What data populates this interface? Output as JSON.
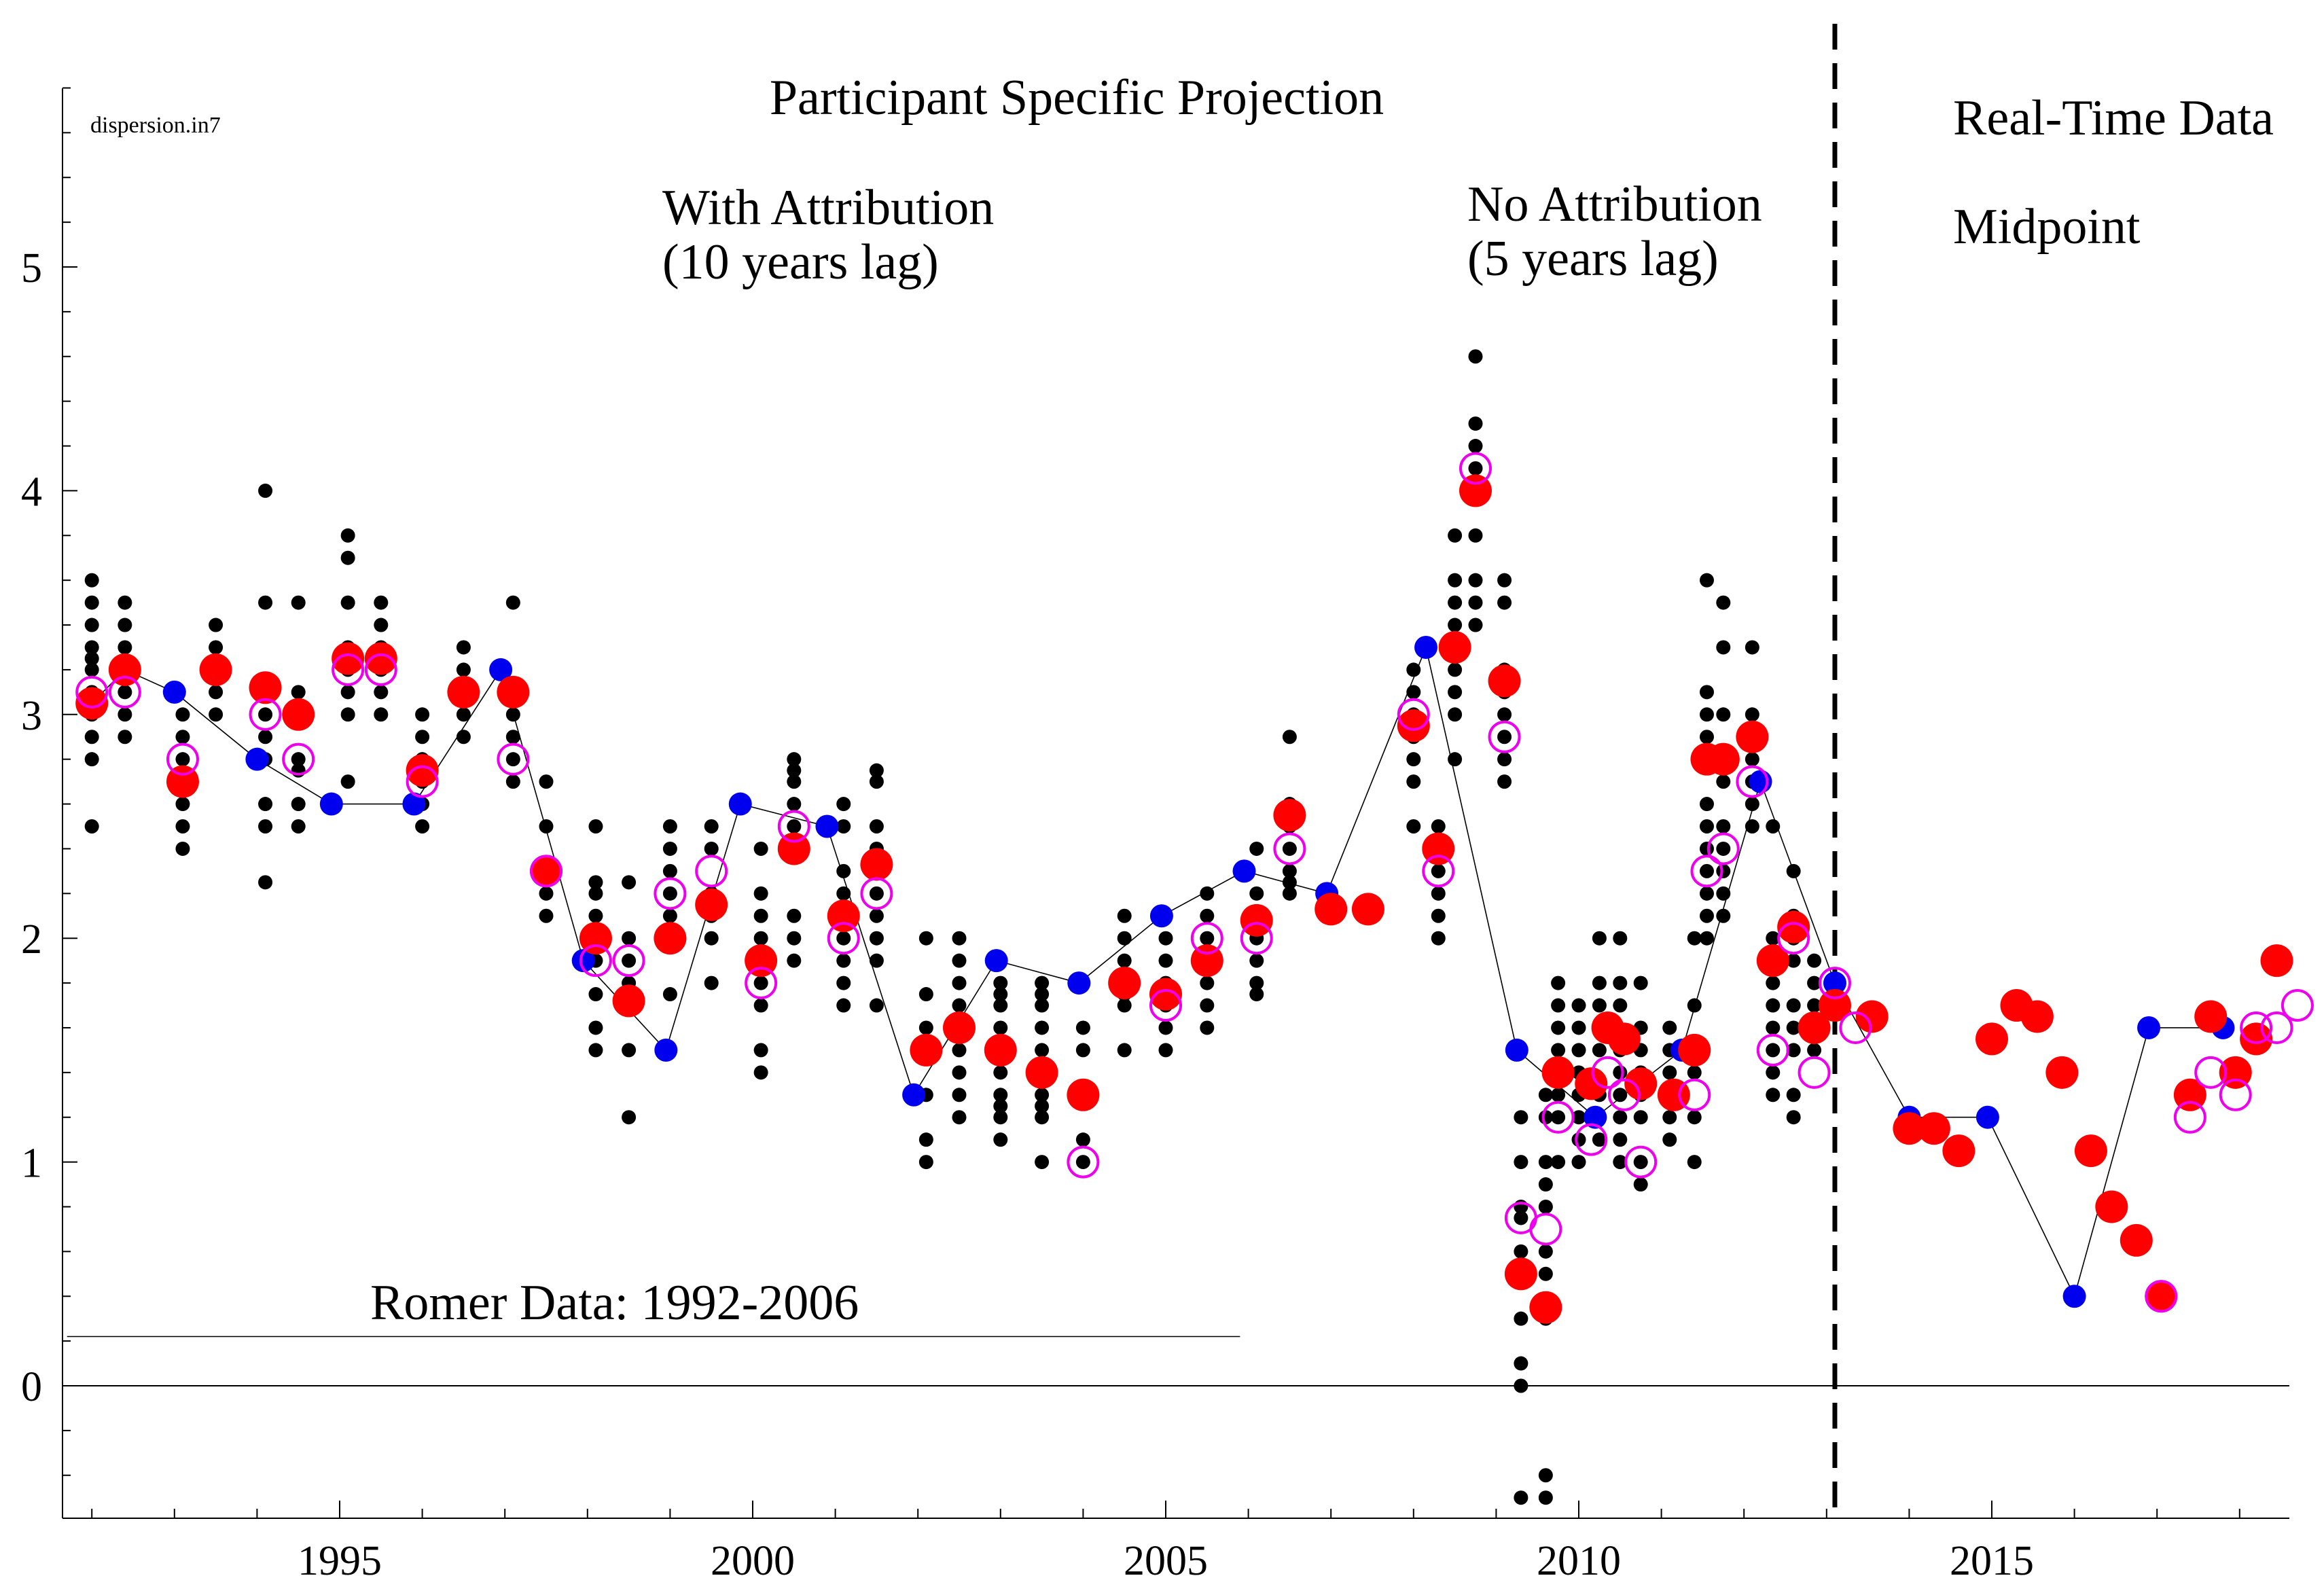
{
  "chart_data": {
    "type": "scatter",
    "title": "Participant Specific Projection",
    "file_label": "dispersion.in7",
    "annotations": {
      "with_attribution": [
        "With Attribution",
        "(10 years lag)"
      ],
      "no_attribution": [
        "No Attribution",
        "(5 years lag)"
      ],
      "real_time": "Real-Time Data",
      "midpoint": "Midpoint",
      "romer": "Romer Data: 1992-2006"
    },
    "xlim": [
      1991.7,
      2018.7
    ],
    "ylim": [
      -0.58,
      5.8
    ],
    "x_ticks": [
      1995,
      2000,
      2005,
      2010,
      2015
    ],
    "y_ticks": [
      0,
      1,
      2,
      3,
      4,
      5
    ],
    "divider_x": 2013.1,
    "romer_line": {
      "x_start": 1991.7,
      "x_end": 2005.9,
      "y": 0.22
    },
    "colors": {
      "participants": "#000000",
      "blue": "#0000ee",
      "red": "#ff0000",
      "open": "#ee00ee",
      "line": "#000000"
    },
    "participants": [
      {
        "x": 1992.0,
        "y": [
          2.5,
          2.8,
          2.9,
          3.0,
          3.1,
          3.2,
          3.25,
          3.3,
          3.4,
          3.5,
          3.6
        ]
      },
      {
        "x": 1992.4,
        "y": [
          2.9,
          3.0,
          3.1,
          3.2,
          3.3,
          3.4,
          3.5
        ]
      },
      {
        "x": 1993.1,
        "y": [
          2.4,
          2.5,
          2.6,
          2.7,
          2.8,
          2.9,
          3.0
        ]
      },
      {
        "x": 1993.5,
        "y": [
          3.0,
          3.1,
          3.2,
          3.3,
          3.4
        ]
      },
      {
        "x": 1994.1,
        "y": [
          2.25,
          2.5,
          2.6,
          2.8,
          2.9,
          3.0,
          3.1,
          3.5,
          4.0
        ]
      },
      {
        "x": 1994.5,
        "y": [
          2.5,
          2.6,
          2.75,
          2.8,
          3.0,
          3.1,
          3.5
        ]
      },
      {
        "x": 1995.1,
        "y": [
          2.7,
          3.0,
          3.1,
          3.2,
          3.3,
          3.5,
          3.7,
          3.8
        ]
      },
      {
        "x": 1995.5,
        "y": [
          3.0,
          3.1,
          3.2,
          3.3,
          3.4,
          3.5
        ]
      },
      {
        "x": 1996.0,
        "y": [
          2.5,
          2.6,
          2.7,
          2.8,
          2.9,
          3.0
        ]
      },
      {
        "x": 1996.5,
        "y": [
          2.9,
          3.0,
          3.1,
          3.2,
          3.3
        ]
      },
      {
        "x": 1997.1,
        "y": [
          2.7,
          2.8,
          2.9,
          3.0,
          3.5
        ]
      },
      {
        "x": 1997.5,
        "y": [
          2.1,
          2.2,
          2.3,
          2.5,
          2.7
        ]
      },
      {
        "x": 1998.1,
        "y": [
          1.5,
          1.6,
          1.75,
          1.9,
          2.0,
          2.1,
          2.2,
          2.25,
          2.5
        ]
      },
      {
        "x": 1998.5,
        "y": [
          1.2,
          1.5,
          1.7,
          1.8,
          1.9,
          2.0,
          2.25
        ]
      },
      {
        "x": 1999.0,
        "y": [
          1.5,
          1.75,
          2.0,
          2.1,
          2.2,
          2.3,
          2.4,
          2.5
        ]
      },
      {
        "x": 1999.5,
        "y": [
          1.8,
          2.0,
          2.1,
          2.2,
          2.4,
          2.5
        ]
      },
      {
        "x": 2000.1,
        "y": [
          1.4,
          1.5,
          1.7,
          1.8,
          1.9,
          2.0,
          2.1,
          2.2,
          2.4
        ]
      },
      {
        "x": 2000.5,
        "y": [
          1.9,
          2.0,
          2.1,
          2.4,
          2.5,
          2.6,
          2.7,
          2.75,
          2.8
        ]
      },
      {
        "x": 2001.1,
        "y": [
          1.7,
          1.8,
          1.9,
          2.0,
          2.1,
          2.2,
          2.3,
          2.5,
          2.6
        ]
      },
      {
        "x": 2001.5,
        "y": [
          1.7,
          1.9,
          2.0,
          2.1,
          2.2,
          2.3,
          2.4,
          2.5,
          2.7,
          2.75
        ]
      },
      {
        "x": 2002.1,
        "y": [
          1.0,
          1.1,
          1.3,
          1.5,
          1.6,
          1.75,
          2.0
        ]
      },
      {
        "x": 2002.5,
        "y": [
          1.2,
          1.3,
          1.4,
          1.5,
          1.6,
          1.7,
          1.8,
          1.9,
          2.0
        ]
      },
      {
        "x": 2003.0,
        "y": [
          1.1,
          1.2,
          1.25,
          1.3,
          1.4,
          1.5,
          1.6,
          1.7,
          1.75,
          1.8
        ]
      },
      {
        "x": 2003.5,
        "y": [
          1.0,
          1.2,
          1.25,
          1.3,
          1.4,
          1.5,
          1.6,
          1.7,
          1.75,
          1.8
        ]
      },
      {
        "x": 2004.0,
        "y": [
          1.0,
          1.1,
          1.3,
          1.5,
          1.6
        ]
      },
      {
        "x": 2004.5,
        "y": [
          1.5,
          1.7,
          1.75,
          1.8,
          1.9,
          2.0,
          2.1
        ]
      },
      {
        "x": 2005.0,
        "y": [
          1.5,
          1.6,
          1.7,
          1.75,
          1.8,
          1.9,
          2.0
        ]
      },
      {
        "x": 2005.5,
        "y": [
          1.6,
          1.7,
          1.8,
          1.9,
          2.0,
          2.1,
          2.2
        ]
      },
      {
        "x": 2006.1,
        "y": [
          1.75,
          1.8,
          1.9,
          2.0,
          2.1,
          2.2,
          2.4
        ]
      },
      {
        "x": 2006.5,
        "y": [
          2.2,
          2.25,
          2.3,
          2.4,
          2.5,
          2.6,
          2.9
        ]
      },
      {
        "x": 2008.0,
        "y": [
          2.5,
          2.7,
          2.8,
          2.9,
          3.0,
          3.1,
          3.2
        ]
      },
      {
        "x": 2008.3,
        "y": [
          2.0,
          2.1,
          2.2,
          2.3,
          2.4,
          2.5
        ]
      },
      {
        "x": 2008.5,
        "y": [
          2.8,
          3.0,
          3.1,
          3.2,
          3.3,
          3.4,
          3.5,
          3.6,
          3.8
        ]
      },
      {
        "x": 2008.75,
        "y": [
          3.4,
          3.5,
          3.6,
          3.8,
          4.0,
          4.1,
          4.2,
          4.3,
          4.6
        ]
      },
      {
        "x": 2009.1,
        "y": [
          2.7,
          2.8,
          2.9,
          3.0,
          3.1,
          3.2,
          3.5,
          3.6
        ]
      },
      {
        "x": 2009.3,
        "y": [
          -0.5,
          0.0,
          0.1,
          0.3,
          0.5,
          0.6,
          0.75,
          0.8,
          1.0,
          1.2
        ]
      },
      {
        "x": 2009.6,
        "y": [
          -0.5,
          -0.4,
          0.3,
          0.5,
          0.6,
          0.8,
          0.9,
          1.0,
          1.2,
          1.3
        ]
      },
      {
        "x": 2009.75,
        "y": [
          1.0,
          1.2,
          1.3,
          1.4,
          1.5,
          1.6,
          1.7,
          1.8
        ]
      },
      {
        "x": 2010.0,
        "y": [
          1.0,
          1.1,
          1.2,
          1.3,
          1.4,
          1.5,
          1.6,
          1.7
        ]
      },
      {
        "x": 2010.25,
        "y": [
          1.1,
          1.2,
          1.3,
          1.5,
          1.6,
          1.7,
          1.8,
          2.0
        ]
      },
      {
        "x": 2010.5,
        "y": [
          1.0,
          1.1,
          1.2,
          1.3,
          1.4,
          1.5,
          1.7,
          1.8,
          2.0
        ]
      },
      {
        "x": 2010.75,
        "y": [
          0.9,
          1.0,
          1.2,
          1.3,
          1.4,
          1.5,
          1.6,
          1.8
        ]
      },
      {
        "x": 2011.1,
        "y": [
          1.1,
          1.2,
          1.3,
          1.4,
          1.5,
          1.6
        ]
      },
      {
        "x": 2011.4,
        "y": [
          1.0,
          1.2,
          1.4,
          1.5,
          1.7,
          2.0
        ]
      },
      {
        "x": 2011.55,
        "y": [
          2.0,
          2.1,
          2.2,
          2.3,
          2.4,
          2.5,
          2.6,
          2.8,
          2.9,
          3.0,
          3.1,
          3.6
        ]
      },
      {
        "x": 2011.75,
        "y": [
          2.1,
          2.2,
          2.3,
          2.4,
          2.5,
          2.7,
          2.8,
          3.0,
          3.3,
          3.5
        ]
      },
      {
        "x": 2012.1,
        "y": [
          2.5,
          2.6,
          2.7,
          2.8,
          2.9,
          3.0,
          3.3
        ]
      },
      {
        "x": 2012.35,
        "y": [
          1.3,
          1.4,
          1.5,
          1.6,
          1.7,
          1.8,
          1.9,
          2.0,
          2.5
        ]
      },
      {
        "x": 2012.6,
        "y": [
          1.2,
          1.3,
          1.5,
          1.6,
          1.7,
          1.9,
          2.0,
          2.1,
          2.3
        ]
      },
      {
        "x": 2012.85,
        "y": [
          1.5,
          1.6,
          1.7,
          1.8,
          1.9
        ]
      }
    ],
    "blue_series": {
      "name": "Blue",
      "points": [
        {
          "x": 1992.0,
          "y": 3.05
        },
        {
          "x": 1992.4,
          "y": 3.2
        },
        {
          "x": 1993.0,
          "y": 3.1
        },
        {
          "x": 1994.0,
          "y": 2.8
        },
        {
          "x": 1994.9,
          "y": 2.6
        },
        {
          "x": 1995.9,
          "y": 2.6
        },
        {
          "x": 1996.95,
          "y": 3.2
        },
        {
          "x": 1997.95,
          "y": 1.9
        },
        {
          "x": 1998.95,
          "y": 1.5
        },
        {
          "x": 1999.85,
          "y": 2.6
        },
        {
          "x": 2000.9,
          "y": 2.5
        },
        {
          "x": 2001.95,
          "y": 1.3
        },
        {
          "x": 2002.95,
          "y": 1.9
        },
        {
          "x": 2003.95,
          "y": 1.8
        },
        {
          "x": 2004.95,
          "y": 2.1
        },
        {
          "x": 2005.95,
          "y": 2.3
        },
        {
          "x": 2006.95,
          "y": 2.2
        },
        {
          "x": 2008.15,
          "y": 3.3
        },
        {
          "x": 2009.25,
          "y": 1.5
        },
        {
          "x": 2010.2,
          "y": 1.2
        },
        {
          "x": 2011.25,
          "y": 1.5
        },
        {
          "x": 2012.2,
          "y": 2.7
        },
        {
          "x": 2013.1,
          "y": 1.8
        },
        {
          "x": 2014.0,
          "y": 1.2
        },
        {
          "x": 2014.95,
          "y": 1.2
        },
        {
          "x": 2016.0,
          "y": 0.4
        },
        {
          "x": 2016.9,
          "y": 1.6
        },
        {
          "x": 2017.8,
          "y": 1.6
        }
      ]
    },
    "red_series": {
      "name": "Red",
      "points": [
        {
          "x": 1992.0,
          "y": 3.05
        },
        {
          "x": 1992.4,
          "y": 3.2
        },
        {
          "x": 1993.1,
          "y": 2.7
        },
        {
          "x": 1993.5,
          "y": 3.2
        },
        {
          "x": 1994.1,
          "y": 3.12
        },
        {
          "x": 1994.5,
          "y": 3.0
        },
        {
          "x": 1995.1,
          "y": 3.25
        },
        {
          "x": 1995.5,
          "y": 3.25
        },
        {
          "x": 1996.0,
          "y": 2.75
        },
        {
          "x": 1996.5,
          "y": 3.1
        },
        {
          "x": 1997.1,
          "y": 3.1
        },
        {
          "x": 1997.5,
          "y": 2.3
        },
        {
          "x": 1998.1,
          "y": 2.0
        },
        {
          "x": 1998.5,
          "y": 1.72
        },
        {
          "x": 1999.0,
          "y": 2.0
        },
        {
          "x": 1999.5,
          "y": 2.15
        },
        {
          "x": 2000.1,
          "y": 1.9
        },
        {
          "x": 2000.5,
          "y": 2.4
        },
        {
          "x": 2001.1,
          "y": 2.1
        },
        {
          "x": 2001.5,
          "y": 2.33
        },
        {
          "x": 2002.1,
          "y": 1.5
        },
        {
          "x": 2002.5,
          "y": 1.6
        },
        {
          "x": 2003.0,
          "y": 1.5
        },
        {
          "x": 2003.5,
          "y": 1.4
        },
        {
          "x": 2004.0,
          "y": 1.3
        },
        {
          "x": 2004.5,
          "y": 1.8
        },
        {
          "x": 2005.0,
          "y": 1.75
        },
        {
          "x": 2005.5,
          "y": 1.9
        },
        {
          "x": 2006.1,
          "y": 2.08
        },
        {
          "x": 2006.5,
          "y": 2.55
        },
        {
          "x": 2007.0,
          "y": 2.13
        },
        {
          "x": 2007.45,
          "y": 2.13
        },
        {
          "x": 2008.0,
          "y": 2.95
        },
        {
          "x": 2008.3,
          "y": 2.4
        },
        {
          "x": 2008.5,
          "y": 3.3
        },
        {
          "x": 2008.75,
          "y": 4.0
        },
        {
          "x": 2009.1,
          "y": 3.15
        },
        {
          "x": 2009.3,
          "y": 0.5
        },
        {
          "x": 2009.6,
          "y": 0.35
        },
        {
          "x": 2009.75,
          "y": 1.4
        },
        {
          "x": 2010.15,
          "y": 1.35
        },
        {
          "x": 2010.35,
          "y": 1.6
        },
        {
          "x": 2010.55,
          "y": 1.55
        },
        {
          "x": 2010.75,
          "y": 1.35
        },
        {
          "x": 2011.15,
          "y": 1.3
        },
        {
          "x": 2011.4,
          "y": 1.5
        },
        {
          "x": 2011.55,
          "y": 2.8
        },
        {
          "x": 2011.75,
          "y": 2.8
        },
        {
          "x": 2012.1,
          "y": 2.9
        },
        {
          "x": 2012.35,
          "y": 1.9
        },
        {
          "x": 2012.6,
          "y": 2.05
        },
        {
          "x": 2012.85,
          "y": 1.6
        },
        {
          "x": 2013.1,
          "y": 1.7
        },
        {
          "x": 2013.55,
          "y": 1.65
        },
        {
          "x": 2014.0,
          "y": 1.15
        },
        {
          "x": 2014.3,
          "y": 1.15
        },
        {
          "x": 2014.6,
          "y": 1.05
        },
        {
          "x": 2015.0,
          "y": 1.55
        },
        {
          "x": 2015.3,
          "y": 1.7
        },
        {
          "x": 2015.55,
          "y": 1.65
        },
        {
          "x": 2015.85,
          "y": 1.4
        },
        {
          "x": 2016.2,
          "y": 1.05
        },
        {
          "x": 2016.45,
          "y": 0.8
        },
        {
          "x": 2016.75,
          "y": 0.65
        },
        {
          "x": 2017.05,
          "y": 0.4
        },
        {
          "x": 2017.4,
          "y": 1.3
        },
        {
          "x": 2017.65,
          "y": 1.65
        },
        {
          "x": 2017.95,
          "y": 1.4
        },
        {
          "x": 2018.2,
          "y": 1.55
        },
        {
          "x": 2018.45,
          "y": 1.9
        }
      ]
    },
    "open_series": {
      "name": "Open circles",
      "points": [
        {
          "x": 1992.0,
          "y": 3.1
        },
        {
          "x": 1992.4,
          "y": 3.1
        },
        {
          "x": 1993.1,
          "y": 2.8
        },
        {
          "x": 1994.1,
          "y": 3.0
        },
        {
          "x": 1994.5,
          "y": 2.8
        },
        {
          "x": 1995.1,
          "y": 3.2
        },
        {
          "x": 1995.5,
          "y": 3.2
        },
        {
          "x": 1996.0,
          "y": 2.7
        },
        {
          "x": 1997.1,
          "y": 2.8
        },
        {
          "x": 1997.5,
          "y": 2.3
        },
        {
          "x": 1998.1,
          "y": 1.9
        },
        {
          "x": 1998.5,
          "y": 1.9
        },
        {
          "x": 1999.0,
          "y": 2.2
        },
        {
          "x": 1999.5,
          "y": 2.3
        },
        {
          "x": 2000.1,
          "y": 1.8
        },
        {
          "x": 2000.5,
          "y": 2.5
        },
        {
          "x": 2001.1,
          "y": 2.0
        },
        {
          "x": 2001.5,
          "y": 2.2
        },
        {
          "x": 2004.0,
          "y": 1.0
        },
        {
          "x": 2005.0,
          "y": 1.7
        },
        {
          "x": 2005.5,
          "y": 2.0
        },
        {
          "x": 2006.1,
          "y": 2.0
        },
        {
          "x": 2006.5,
          "y": 2.4
        },
        {
          "x": 2008.0,
          "y": 3.0
        },
        {
          "x": 2008.3,
          "y": 2.3
        },
        {
          "x": 2008.75,
          "y": 4.1
        },
        {
          "x": 2009.1,
          "y": 2.9
        },
        {
          "x": 2009.3,
          "y": 0.75
        },
        {
          "x": 2009.6,
          "y": 0.7
        },
        {
          "x": 2009.75,
          "y": 1.2
        },
        {
          "x": 2010.15,
          "y": 1.1
        },
        {
          "x": 2010.35,
          "y": 1.4
        },
        {
          "x": 2010.55,
          "y": 1.3
        },
        {
          "x": 2010.75,
          "y": 1.0
        },
        {
          "x": 2011.4,
          "y": 1.3
        },
        {
          "x": 2011.55,
          "y": 2.3
        },
        {
          "x": 2011.75,
          "y": 2.4
        },
        {
          "x": 2012.1,
          "y": 2.7
        },
        {
          "x": 2012.35,
          "y": 1.5
        },
        {
          "x": 2012.6,
          "y": 2.0
        },
        {
          "x": 2012.85,
          "y": 1.4
        },
        {
          "x": 2013.1,
          "y": 1.8
        },
        {
          "x": 2013.35,
          "y": 1.6
        },
        {
          "x": 2017.05,
          "y": 0.4
        },
        {
          "x": 2017.4,
          "y": 1.2
        },
        {
          "x": 2017.65,
          "y": 1.4
        },
        {
          "x": 2017.95,
          "y": 1.3
        },
        {
          "x": 2018.2,
          "y": 1.6
        },
        {
          "x": 2018.45,
          "y": 1.6
        },
        {
          "x": 2018.7,
          "y": 1.7
        }
      ]
    }
  }
}
